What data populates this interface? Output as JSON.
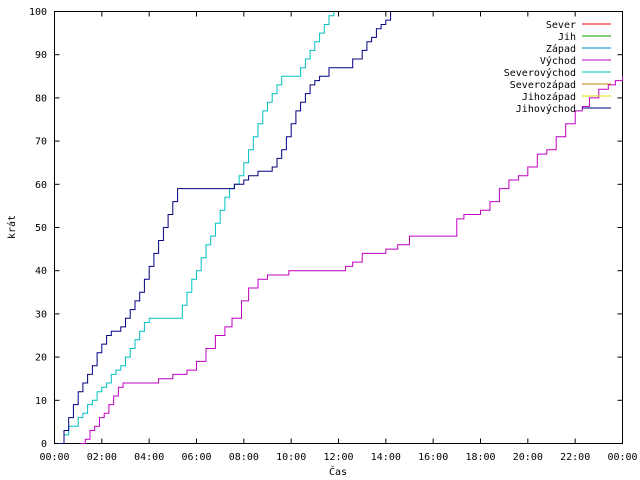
{
  "chart_data": {
    "type": "line",
    "xlabel": "Čas",
    "ylabel": "krát",
    "xlim": [
      0,
      24
    ],
    "ylim": [
      0,
      100
    ],
    "grid": false,
    "legend_placement": "top-right",
    "x_ticks": [
      {
        "value": 0,
        "label": "00:00"
      },
      {
        "value": 2,
        "label": "02:00"
      },
      {
        "value": 4,
        "label": "04:00"
      },
      {
        "value": 6,
        "label": "06:00"
      },
      {
        "value": 8,
        "label": "08:00"
      },
      {
        "value": 10,
        "label": "10:00"
      },
      {
        "value": 12,
        "label": "12:00"
      },
      {
        "value": 14,
        "label": "14:00"
      },
      {
        "value": 16,
        "label": "16:00"
      },
      {
        "value": 18,
        "label": "18:00"
      },
      {
        "value": 20,
        "label": "20:00"
      },
      {
        "value": 22,
        "label": "22:00"
      },
      {
        "value": 24,
        "label": "00:00"
      }
    ],
    "y_ticks": [
      {
        "value": 0,
        "label": "0"
      },
      {
        "value": 10,
        "label": "10"
      },
      {
        "value": 20,
        "label": "20"
      },
      {
        "value": 30,
        "label": "30"
      },
      {
        "value": 40,
        "label": "40"
      },
      {
        "value": 50,
        "label": "50"
      },
      {
        "value": 60,
        "label": "60"
      },
      {
        "value": 70,
        "label": "70"
      },
      {
        "value": 80,
        "label": "80"
      },
      {
        "value": 90,
        "label": "90"
      },
      {
        "value": 100,
        "label": "100"
      }
    ],
    "series": [
      {
        "name": "Sever",
        "color": "#ff0000",
        "x": [],
        "y": []
      },
      {
        "name": "Jih",
        "color": "#00a000",
        "x": [],
        "y": []
      },
      {
        "name": "Západ",
        "color": "#0080c0",
        "x": [],
        "y": []
      },
      {
        "name": "Východ",
        "color": "#c000c0",
        "x": [
          1.1,
          1.3,
          1.5,
          1.7,
          1.9,
          2.1,
          2.3,
          2.5,
          2.7,
          2.9,
          3.2,
          4.0,
          4.4,
          5.0,
          5.6,
          6.0,
          6.4,
          6.8,
          7.2,
          7.5,
          7.9,
          8.2,
          8.6,
          9.0,
          9.4,
          9.9,
          11.0,
          12.0,
          12.3,
          12.6,
          13.0,
          13.6,
          14.0,
          14.5,
          15.0,
          16.0,
          16.8,
          17.0,
          17.3,
          17.8,
          18.0,
          18.4,
          18.8,
          19.2,
          19.6,
          20.0,
          20.4,
          20.8,
          21.2,
          21.6,
          22.0,
          22.3,
          22.6,
          23.0,
          23.4,
          23.7,
          24.0
        ],
        "y": [
          0,
          1,
          3,
          4,
          6,
          7,
          9,
          11,
          13,
          14,
          14,
          14,
          15,
          16,
          17,
          19,
          22,
          25,
          27,
          29,
          33,
          36,
          38,
          39,
          39,
          40,
          40,
          40,
          41,
          42,
          44,
          44,
          45,
          46,
          48,
          48,
          48,
          52,
          53,
          53,
          54,
          56,
          59,
          61,
          62,
          64,
          67,
          68,
          71,
          74,
          77,
          78,
          80,
          82,
          83,
          84,
          85
        ]
      },
      {
        "name": "Severovýchod",
        "color": "#00c0c0",
        "x": [
          0.2,
          0.4,
          0.6,
          0.8,
          1.0,
          1.2,
          1.4,
          1.6,
          1.8,
          2.0,
          2.2,
          2.4,
          2.6,
          2.8,
          3.0,
          3.2,
          3.4,
          3.6,
          3.8,
          4.0,
          4.2,
          5.2,
          5.4,
          5.6,
          5.8,
          6.0,
          6.2,
          6.4,
          6.6,
          6.8,
          7.0,
          7.2,
          7.4,
          7.6,
          7.8,
          8.0,
          8.2,
          8.4,
          8.6,
          8.8,
          9.0,
          9.2,
          9.4,
          9.6,
          9.8,
          10.2,
          10.4,
          10.6,
          10.8,
          11.0,
          11.2,
          11.4,
          11.6,
          11.8
        ],
        "y": [
          0,
          2,
          4,
          4,
          6,
          7,
          9,
          10,
          12,
          13,
          14,
          16,
          17,
          18,
          20,
          22,
          24,
          26,
          28,
          29,
          29,
          29,
          32,
          35,
          38,
          40,
          43,
          46,
          48,
          51,
          54,
          57,
          59,
          60,
          62,
          65,
          68,
          71,
          74,
          77,
          79,
          81,
          83,
          85,
          85,
          85,
          87,
          89,
          91,
          93,
          95,
          97,
          99,
          100
        ]
      },
      {
        "name": "Severozápad",
        "color": "#c08000",
        "x": [],
        "y": []
      },
      {
        "name": "Jihozápad",
        "color": "#e0e000",
        "x": [],
        "y": []
      },
      {
        "name": "Jihovýchod",
        "color": "#000080",
        "x": [
          0.2,
          0.4,
          0.6,
          0.8,
          1.0,
          1.2,
          1.4,
          1.6,
          1.8,
          2.0,
          2.2,
          2.4,
          2.6,
          2.8,
          3.0,
          3.2,
          3.4,
          3.6,
          3.8,
          4.0,
          4.2,
          4.4,
          4.6,
          4.8,
          5.0,
          5.2,
          5.8,
          6.4,
          7.0,
          7.6,
          8.0,
          8.2,
          8.6,
          9.0,
          9.2,
          9.4,
          9.6,
          9.8,
          10.0,
          10.2,
          10.4,
          10.6,
          10.8,
          11.0,
          11.2,
          11.6,
          12.0,
          12.2,
          12.6,
          13.0,
          13.2,
          13.4,
          13.6,
          13.8,
          14.0,
          14.2
        ],
        "y": [
          0,
          3,
          6,
          9,
          12,
          14,
          16,
          18,
          21,
          23,
          25,
          26,
          26,
          27,
          29,
          31,
          33,
          35,
          38,
          41,
          44,
          47,
          50,
          53,
          56,
          59,
          59,
          59,
          59,
          60,
          61,
          62,
          63,
          63,
          64,
          66,
          68,
          71,
          74,
          77,
          79,
          81,
          83,
          84,
          85,
          87,
          87,
          87,
          89,
          91,
          93,
          94,
          96,
          97,
          98,
          100
        ]
      }
    ]
  }
}
